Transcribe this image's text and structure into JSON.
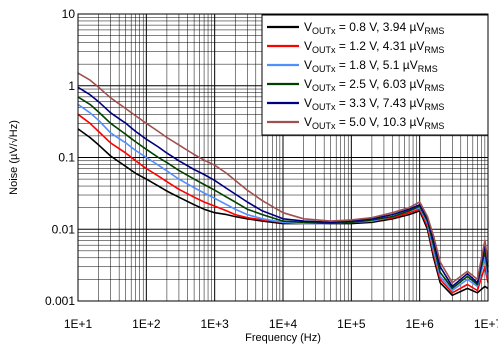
{
  "chart_data": {
    "type": "line",
    "xlabel": "Frequency (Hz)",
    "ylabel": "Noise (µV/√Hz)",
    "x_scale": "log",
    "y_scale": "log",
    "xlim": [
      10,
      10000000
    ],
    "ylim": [
      0.001,
      10
    ],
    "x_ticks": [
      "1E+1",
      "1E+2",
      "1E+3",
      "1E+4",
      "1E+5",
      "1E+6",
      "1E+7"
    ],
    "y_ticks": [
      "0.001",
      "0.01",
      "0.1",
      "1",
      "10"
    ],
    "grid": true,
    "legend_position": "top-right",
    "series": [
      {
        "name": "V_OUTx = 0.8 V, 3.94 µV_RMS",
        "legend": {
          "pre": "V",
          "sub1": "OUTx",
          "mid": " = 0.8 V, 3.94 µV",
          "sub2": "RMS"
        },
        "color": "#000000",
        "x": [
          10,
          15,
          20,
          30,
          50,
          70,
          100,
          150,
          200,
          300,
          500,
          700,
          1000,
          1500,
          2000,
          3000,
          5000,
          10000,
          20000,
          50000,
          100000,
          200000,
          400000,
          700000,
          1000000,
          1300000,
          1600000,
          2000000,
          3000000,
          5000000,
          7000000,
          9000000,
          10000000
        ],
        "y": [
          0.25,
          0.19,
          0.15,
          0.105,
          0.075,
          0.06,
          0.05,
          0.04,
          0.034,
          0.028,
          0.022,
          0.019,
          0.017,
          0.016,
          0.015,
          0.014,
          0.013,
          0.012,
          0.012,
          0.012,
          0.012,
          0.0125,
          0.014,
          0.016,
          0.018,
          0.01,
          0.004,
          0.0018,
          0.0012,
          0.0015,
          0.0013,
          0.0016,
          0.0015
        ]
      },
      {
        "name": "V_OUTx = 1.2 V, 4.31 µV_RMS",
        "legend": {
          "pre": "V",
          "sub1": "OUTx",
          "mid": " = 1.2 V, 4.31 µV",
          "sub2": "RMS"
        },
        "color": "#ff0000",
        "x": [
          10,
          15,
          20,
          30,
          50,
          70,
          100,
          150,
          200,
          300,
          500,
          700,
          1000,
          1500,
          2000,
          3000,
          5000,
          10000,
          20000,
          50000,
          100000,
          200000,
          400000,
          700000,
          1000000,
          1300000,
          1600000,
          2000000,
          3000000,
          5000000,
          7000000,
          9000000,
          10000000
        ],
        "y": [
          0.4,
          0.3,
          0.23,
          0.16,
          0.115,
          0.09,
          0.07,
          0.055,
          0.046,
          0.036,
          0.028,
          0.024,
          0.021,
          0.018,
          0.016,
          0.0145,
          0.0135,
          0.0125,
          0.012,
          0.012,
          0.0125,
          0.013,
          0.0145,
          0.017,
          0.019,
          0.011,
          0.0045,
          0.002,
          0.0013,
          0.0017,
          0.0014,
          0.003,
          0.0018
        ]
      },
      {
        "name": "V_OUTx = 1.8 V, 5.1 µV_RMS",
        "legend": {
          "pre": "V",
          "sub1": "OUTx",
          "mid": " = 1.8 V, 5.1 µV",
          "sub2": "RMS"
        },
        "color": "#4f8fff",
        "x": [
          10,
          15,
          20,
          30,
          50,
          70,
          100,
          150,
          200,
          300,
          500,
          700,
          1000,
          1500,
          2000,
          3000,
          5000,
          10000,
          20000,
          50000,
          100000,
          200000,
          400000,
          700000,
          1000000,
          1300000,
          1600000,
          2000000,
          3000000,
          5000000,
          7000000,
          9000000,
          10000000
        ],
        "y": [
          0.55,
          0.42,
          0.33,
          0.22,
          0.16,
          0.125,
          0.1,
          0.078,
          0.065,
          0.05,
          0.038,
          0.032,
          0.027,
          0.022,
          0.019,
          0.016,
          0.014,
          0.0125,
          0.012,
          0.012,
          0.0125,
          0.013,
          0.015,
          0.018,
          0.02,
          0.012,
          0.005,
          0.0022,
          0.0014,
          0.002,
          0.0016,
          0.004,
          0.002
        ]
      },
      {
        "name": "V_OUTx = 2.5 V, 6.03 µV_RMS",
        "legend": {
          "pre": "V",
          "sub1": "OUTx",
          "mid": " = 2.5 V, 6.03 µV",
          "sub2": "RMS"
        },
        "color": "#004000",
        "x": [
          10,
          15,
          20,
          30,
          50,
          70,
          100,
          150,
          200,
          300,
          500,
          700,
          1000,
          1500,
          2000,
          3000,
          5000,
          10000,
          20000,
          50000,
          100000,
          200000,
          400000,
          700000,
          1000000,
          1300000,
          1600000,
          2000000,
          3000000,
          5000000,
          7000000,
          9000000,
          10000000
        ],
        "y": [
          0.7,
          0.55,
          0.43,
          0.3,
          0.21,
          0.165,
          0.13,
          0.1,
          0.085,
          0.066,
          0.05,
          0.042,
          0.035,
          0.028,
          0.024,
          0.019,
          0.016,
          0.013,
          0.0125,
          0.012,
          0.0125,
          0.0135,
          0.015,
          0.018,
          0.021,
          0.013,
          0.006,
          0.0025,
          0.0015,
          0.0022,
          0.0017,
          0.005,
          0.0025
        ]
      },
      {
        "name": "V_OUTx = 3.3 V, 7.43 µV_RMS",
        "legend": {
          "pre": "V",
          "sub1": "OUTx",
          "mid": " = 3.3 V, 7.43 µV",
          "sub2": "RMS"
        },
        "color": "#00007f",
        "x": [
          10,
          15,
          20,
          30,
          50,
          70,
          100,
          150,
          200,
          300,
          500,
          700,
          1000,
          1500,
          2000,
          3000,
          5000,
          10000,
          20000,
          50000,
          100000,
          200000,
          400000,
          700000,
          1000000,
          1300000,
          1600000,
          2000000,
          3000000,
          5000000,
          7000000,
          9000000,
          10000000
        ],
        "y": [
          0.95,
          0.75,
          0.6,
          0.42,
          0.3,
          0.23,
          0.18,
          0.14,
          0.115,
          0.09,
          0.068,
          0.058,
          0.048,
          0.037,
          0.031,
          0.024,
          0.018,
          0.014,
          0.013,
          0.0125,
          0.013,
          0.014,
          0.016,
          0.019,
          0.022,
          0.014,
          0.007,
          0.003,
          0.0016,
          0.0024,
          0.0018,
          0.006,
          0.003
        ]
      },
      {
        "name": "V_OUTx = 5.0 V, 10.3 µV_RMS",
        "legend": {
          "pre": "V",
          "sub1": "OUTx",
          "mid": " = 5.0 V, 10.3 µV",
          "sub2": "RMS"
        },
        "color": "#a0504f",
        "x": [
          10,
          15,
          20,
          30,
          50,
          70,
          100,
          150,
          200,
          300,
          500,
          700,
          1000,
          1500,
          2000,
          3000,
          5000,
          10000,
          20000,
          50000,
          100000,
          200000,
          400000,
          700000,
          1000000,
          1300000,
          1600000,
          2000000,
          3000000,
          5000000,
          7000000,
          9000000,
          10000000
        ],
        "y": [
          1.5,
          1.2,
          0.95,
          0.68,
          0.48,
          0.38,
          0.3,
          0.23,
          0.19,
          0.15,
          0.11,
          0.092,
          0.078,
          0.06,
          0.048,
          0.035,
          0.025,
          0.017,
          0.014,
          0.013,
          0.0135,
          0.0145,
          0.017,
          0.02,
          0.024,
          0.015,
          0.008,
          0.0035,
          0.0018,
          0.0026,
          0.002,
          0.007,
          0.0035
        ]
      }
    ]
  }
}
